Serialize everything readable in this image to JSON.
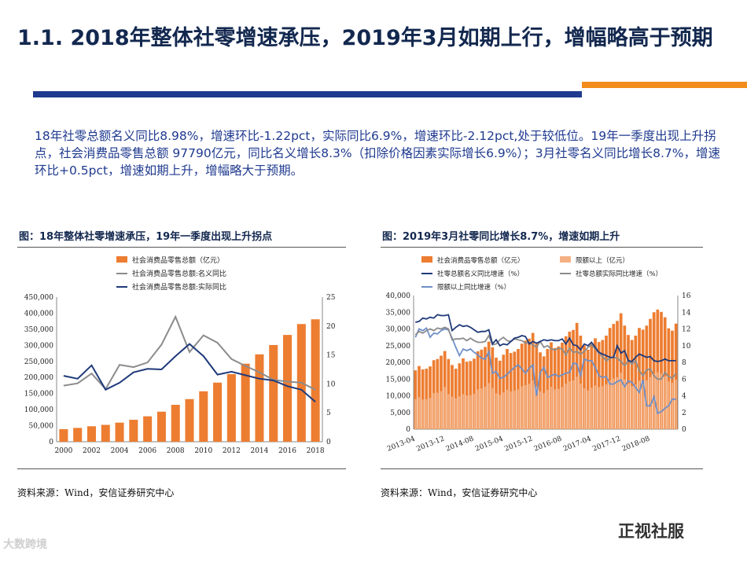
{
  "page": {
    "title": "1.1. 2018年整体社零增速承压，2019年3月如期上行，增幅略高于预期",
    "body": "18年社零总额名义同比8.98%，增速环比-1.22pct，实际同比6.9%，增速环比-2.12pct,处于较低位。19年一季度出现上升拐点，社会消费品零售总额 97790亿元，同比名义增长8.3%（扣除价格因素实际增长6.9%）；3月社零名义同比增长8.7%，增速环比+0.5pct，增速如期上升，增幅略大于预期。",
    "source_left": "资料来源：Wind，安信证券研究中心",
    "source_right": "资料来源：Wind，安信证券研究中心",
    "watermark_left": "大数跨境",
    "watermark_right": "正视社服"
  },
  "colors": {
    "bar": "#ed7d31",
    "bar_light": "#f4b183",
    "gray": "#8c8c8c",
    "navy": "#1f3a7a",
    "lightblue": "#6f8fc8"
  },
  "chart_data": [
    {
      "type": "bar",
      "title": "图：18年整体社零增速承压，19年一季度出现上升拐点",
      "categories": [
        "2000",
        "2001",
        "2002",
        "2003",
        "2004",
        "2005",
        "2006",
        "2007",
        "2008",
        "2009",
        "2010",
        "2011",
        "2012",
        "2013",
        "2014",
        "2015",
        "2016",
        "2017",
        "2018"
      ],
      "x_tick_labels": [
        "2000",
        "2002",
        "2004",
        "2006",
        "2008",
        "2010",
        "2012",
        "2014",
        "2016",
        "2018"
      ],
      "series": [
        {
          "name": "社会消费品零售总额（亿元）",
          "axis": "left",
          "kind": "bar",
          "values": [
            39106,
            43055,
            48136,
            52516,
            59501,
            68353,
            79145,
            93572,
            114830,
            132678,
            156998,
            183919,
            210307,
            242843,
            271896,
            300931,
            332316,
            366262,
            380987
          ]
        },
        {
          "name": "社会消费品零售总额:名义同比",
          "axis": "right",
          "kind": "line",
          "values": [
            9.7,
            10.1,
            11.8,
            9.1,
            13.3,
            12.9,
            13.7,
            16.8,
            21.6,
            15.5,
            18.4,
            17.1,
            14.3,
            13.1,
            12.0,
            10.7,
            10.4,
            10.2,
            9.0
          ]
        },
        {
          "name": "社会消费品零售总额:实际同比",
          "axis": "right",
          "kind": "line",
          "values": [
            11.4,
            10.9,
            13.2,
            9.0,
            10.2,
            12.0,
            12.6,
            12.5,
            14.8,
            16.9,
            14.8,
            11.6,
            12.1,
            11.5,
            10.9,
            10.6,
            9.6,
            9.0,
            6.9
          ]
        }
      ],
      "ylim_left": [
        0,
        450000
      ],
      "yticks_left": [
        "0",
        "50,000",
        "100,000",
        "150,000",
        "200,000",
        "250,000",
        "300,000",
        "350,000",
        "400,000",
        "450,000"
      ],
      "ylim_right": [
        0,
        25
      ],
      "yticks_right": [
        "0",
        "5",
        "10",
        "15",
        "20",
        "25"
      ]
    },
    {
      "type": "bar",
      "title": "图：2019年3月社零同比增长8.7%，增速如期上升",
      "x_tick_labels": [
        "2013-04",
        "2013-12",
        "2014-08",
        "2015-04",
        "2015-12",
        "2016-08",
        "2017-04",
        "2017-12",
        "2018-08"
      ],
      "x_count": 72,
      "series": [
        {
          "name": "社会消费品零售总额（亿元）",
          "axis": "left",
          "kind": "bar",
          "values": [
            17600,
            18900,
            17900,
            18100,
            18800,
            20650,
            21000,
            22000,
            23380,
            21000,
            19200,
            18100,
            19700,
            21200,
            20200,
            20400,
            21100,
            23300,
            23800,
            24600,
            26200,
            24500,
            21400,
            20500,
            22300,
            24000,
            22800,
            23200,
            24000,
            25600,
            26500,
            27100,
            28800,
            25600,
            23000,
            21800,
            24000,
            26000,
            24300,
            24800,
            25900,
            27800,
            29200,
            29700,
            31800,
            28000,
            25100,
            23800,
            25600,
            27200,
            26100,
            26700,
            28000,
            30300,
            31500,
            32400,
            34700,
            31000,
            28200,
            26700,
            28000,
            30300,
            29800,
            31000,
            33000,
            35000,
            35800,
            35100,
            33500,
            30200,
            29500,
            31600
          ]
        },
        {
          "name": "限额以上（亿元）",
          "axis": "left",
          "kind": "bar",
          "values": [
            9000,
            9600,
            8900,
            9000,
            9400,
            10800,
            10900,
            11400,
            12600,
            10500,
            9700,
            9200,
            9800,
            10500,
            10100,
            10200,
            10600,
            11900,
            12200,
            12700,
            13800,
            12300,
            10700,
            10300,
            11000,
            11800,
            11300,
            11500,
            11900,
            12800,
            13200,
            13600,
            14600,
            12800,
            11300,
            10800,
            11800,
            12700,
            11900,
            12100,
            12600,
            13600,
            14300,
            14600,
            15700,
            13600,
            12200,
            11600,
            12400,
            13100,
            12600,
            12900,
            13400,
            14600,
            15200,
            15600,
            16900,
            14900,
            13600,
            12900,
            13400,
            14500,
            14200,
            14700,
            15600,
            16600,
            17000,
            16600,
            15800,
            14300,
            13900,
            14800
          ]
        },
        {
          "name": "社零总额名义同比增速（%）",
          "axis": "right",
          "kind": "line",
          "values": [
            12.8,
            12.9,
            13.3,
            13.2,
            13.4,
            13.3,
            13.7,
            13.6,
            13.6,
            13.7,
            11.8,
            12.2,
            12.5,
            12.3,
            12.4,
            12.2,
            11.9,
            11.6,
            11.7,
            11.7,
            11.9,
            10.2,
            10.7,
            10.0,
            10.2,
            10.1,
            10.5,
            10.9,
            11.0,
            11.2,
            11.1,
            10.2,
            10.5,
            10.3,
            10.5,
            10.7,
            10.6,
            10.7,
            10.6,
            10.6,
            10.8,
            10.2,
            10.9,
            10.1,
            10.0,
            9.5,
            10.2,
            10.0,
            10.4,
            9.8,
            9.2,
            9.0,
            8.8,
            8.6,
            8.6,
            10.0,
            9.1,
            9.4,
            8.2,
            8.1,
            8.6,
            9.0,
            8.8,
            8.6,
            8.7,
            8.2,
            8.1,
            8.2,
            8.4,
            8.2,
            8.2,
            8.2
          ]
        },
        {
          "name": "社零总额实际同比增速（%）",
          "axis": "right",
          "kind": "line",
          "values": [
            11.3,
            11.7,
            11.5,
            11.8,
            12.0,
            11.8,
            12.1,
            12.0,
            12.2,
            12.0,
            10.7,
            10.8,
            10.8,
            10.9,
            10.6,
            10.9,
            10.6,
            10.4,
            10.4,
            10.5,
            11.2,
            10.1,
            10.2,
            10.7,
            11.0,
            10.6,
            10.5,
            10.8,
            10.7,
            10.6,
            10.3,
            10.4,
            10.1,
            9.8,
            10.5,
            9.8,
            10.0,
            9.6,
            9.5,
            9.7,
            9.6,
            8.9,
            9.7,
            9.2,
            9.3,
            9.0,
            9.3,
            9.8,
            10.1,
            9.6,
            9.1,
            8.7,
            8.2,
            8.5,
            8.6,
            8.5,
            8.1,
            7.6,
            8.2,
            7.8,
            8.2,
            7.0,
            6.4,
            7.1,
            7.2,
            6.4,
            6.0,
            6.0,
            6.8,
            6.3,
            6.1,
            6.7
          ]
        },
        {
          "name": "限额以上同比增速（%）",
          "axis": "right",
          "kind": "line",
          "values": [
            11.0,
            12.0,
            11.8,
            12.1,
            11.0,
            11.5,
            11.4,
            11.8,
            12.0,
            11.9,
            10.9,
            9.8,
            8.8,
            9.6,
            9.4,
            9.6,
            9.2,
            8.9,
            8.5,
            8.4,
            9.3,
            6.7,
            6.9,
            6.1,
            6.2,
            6.6,
            7.0,
            7.4,
            7.7,
            7.2,
            6.7,
            7.3,
            7.7,
            4.0,
            6.8,
            7.4,
            6.2,
            6.4,
            6.6,
            6.3,
            6.5,
            6.7,
            6.8,
            7.9,
            7.8,
            6.4,
            8.4,
            8.2,
            8.2,
            7.4,
            6.4,
            6.2,
            6.3,
            5.4,
            5.4,
            5.7,
            5.9,
            5.1,
            5.8,
            5.6,
            5.0,
            4.4,
            5.9,
            2.8,
            2.8,
            3.9,
            1.9,
            2.1,
            2.5,
            2.8,
            3.6,
            3.6
          ]
        }
      ],
      "ylim_left": [
        0,
        40000
      ],
      "yticks_left": [
        "0",
        "5,000",
        "10,000",
        "15,000",
        "20,000",
        "25,000",
        "30,000",
        "35,000",
        "40,000"
      ],
      "ylim_right": [
        0,
        16
      ],
      "yticks_right": [
        "0",
        "2",
        "4",
        "6",
        "8",
        "10",
        "12",
        "14",
        "16"
      ]
    }
  ]
}
